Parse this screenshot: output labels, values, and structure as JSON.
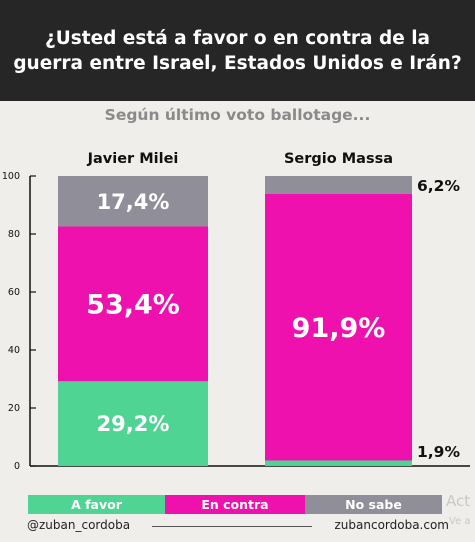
{
  "header": {
    "title": "¿Usted está a favor o en contra de la guerra entre Israel, Estados Unidos e Irán?",
    "subtitle": "Según último voto ballotage..."
  },
  "colors": {
    "a_favor": "#4fd493",
    "en_contra": "#ee11ad",
    "no_sabe": "#8f8e99"
  },
  "chart_data": {
    "type": "bar",
    "stacked": true,
    "categories": [
      "Javier Milei",
      "Sergio Massa"
    ],
    "series": [
      {
        "name": "A favor",
        "values": [
          29.2,
          1.9
        ],
        "labels": [
          "29,2%",
          "1,9%"
        ]
      },
      {
        "name": "En contra",
        "values": [
          53.4,
          91.9
        ],
        "labels": [
          "53,4%",
          "91,9%"
        ]
      },
      {
        "name": "No sabe",
        "values": [
          17.4,
          6.2
        ],
        "labels": [
          "17,4%",
          "6,2%"
        ]
      }
    ],
    "yticks": [
      "0",
      "20",
      "40",
      "60",
      "80",
      "100"
    ],
    "ylim": [
      0,
      100
    ],
    "legend_position": "bottom"
  },
  "legend": [
    {
      "label": "A favor"
    },
    {
      "label": "En contra"
    },
    {
      "label": "No sabe"
    }
  ],
  "footer": {
    "left": "@zuban_cordoba",
    "right": "zubancordoba.com"
  },
  "watermark": {
    "line1": "Act",
    "line2": "Ve a"
  }
}
